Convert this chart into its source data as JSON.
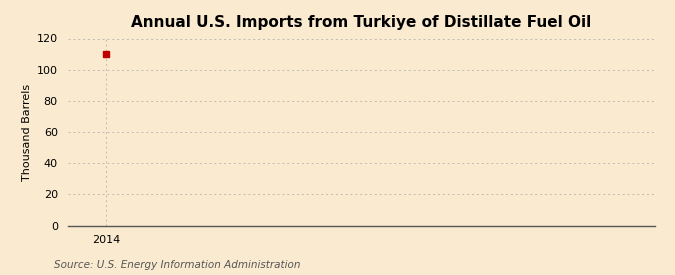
{
  "title": "Annual U.S. Imports from Turkiye of Distillate Fuel Oil",
  "ylabel": "Thousand Barrels",
  "source_text": "Source: U.S. Energy Information Administration",
  "x_data": [
    2014
  ],
  "y_data": [
    110
  ],
  "marker_color": "#c00000",
  "marker_size": 4,
  "xlim": [
    2013.4,
    2022.5
  ],
  "ylim": [
    0,
    120
  ],
  "yticks": [
    0,
    20,
    40,
    60,
    80,
    100,
    120
  ],
  "xticks": [
    2014
  ],
  "background_color": "#faebd0",
  "plot_bg_color": "#faebd0",
  "grid_color": "#aaaaaa",
  "title_fontsize": 11,
  "label_fontsize": 8,
  "source_fontsize": 7.5,
  "tick_fontsize": 8
}
